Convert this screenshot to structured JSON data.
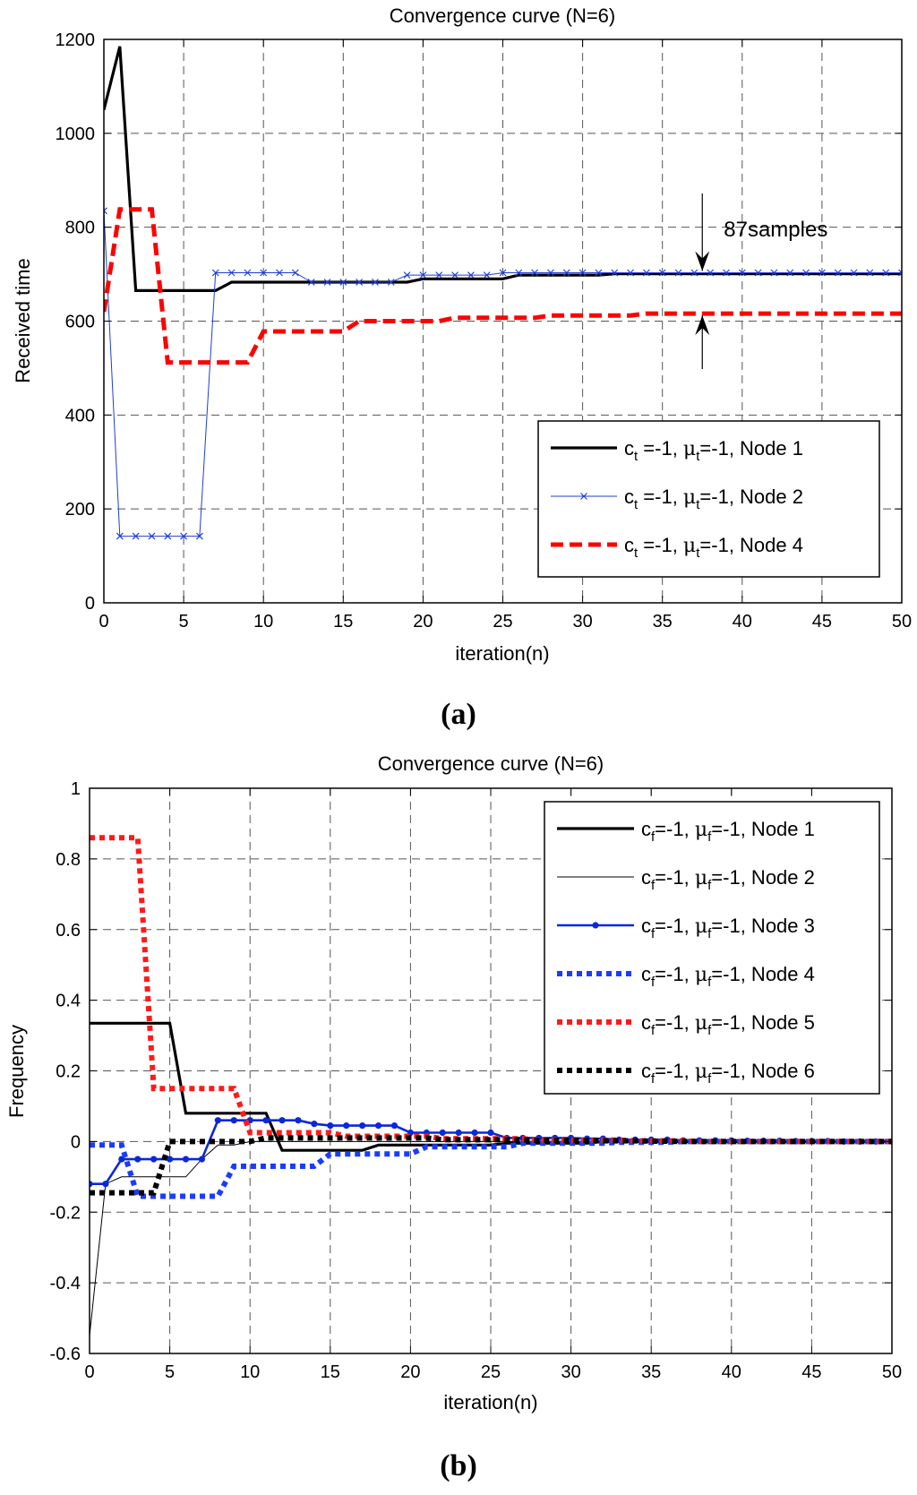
{
  "chart_data": [
    {
      "panel_label": "(a)",
      "type": "line",
      "title": "Convergence curve (N=6)",
      "xlabel": "iteration(n)",
      "ylabel": "Received time",
      "xlim": [
        0,
        50
      ],
      "ylim": [
        0,
        1200
      ],
      "xticks": [
        0,
        5,
        10,
        15,
        20,
        25,
        30,
        35,
        40,
        45,
        50
      ],
      "yticks": [
        0,
        200,
        400,
        600,
        800,
        1000,
        1200
      ],
      "grid": true,
      "legend_position": "bottom-right",
      "annotation": {
        "text": "87samples",
        "x": 37.5,
        "y_top": 703,
        "y_bottom": 616
      },
      "series": [
        {
          "name": "Node 1",
          "legend": {
            "c": "c",
            "sub": "t",
            "mid": " =-1, ",
            "mu_sub": "t",
            "tail": "=-1, Node 1"
          },
          "color": "#000000",
          "style": "solid-thick",
          "values": [
            1050,
            1185,
            665,
            665,
            665,
            665,
            665,
            665,
            683,
            683,
            683,
            683,
            683,
            683,
            683,
            683,
            683,
            683,
            683,
            683,
            690,
            690,
            690,
            690,
            690,
            690,
            698,
            698,
            698,
            698,
            698,
            698,
            701,
            701,
            701,
            701,
            701,
            701,
            701,
            701,
            701,
            701,
            701,
            701,
            701,
            701,
            701,
            701,
            701,
            701,
            701
          ]
        },
        {
          "name": "Node 2",
          "legend": {
            "c": "c",
            "sub": "t",
            "mid": " =-1, ",
            "mu_sub": "t",
            "tail": "=-1, Node 2"
          },
          "color": "#1f3fd0",
          "style": "thin-x",
          "values": [
            835,
            142,
            142,
            142,
            142,
            142,
            142,
            703,
            703,
            703,
            703,
            703,
            703,
            683,
            683,
            683,
            683,
            683,
            683,
            698,
            698,
            698,
            698,
            698,
            698,
            703,
            703,
            703,
            703,
            703,
            703,
            703,
            703,
            703,
            703,
            703,
            703,
            703,
            703,
            703,
            703,
            703,
            703,
            703,
            703,
            703,
            703,
            703,
            703,
            703,
            703
          ]
        },
        {
          "name": "Node 4",
          "legend": {
            "c": "c",
            "sub": "t",
            "mid": " =-1, ",
            "mu_sub": "t",
            "tail": "=-1, Node 4"
          },
          "color": "#ff0000",
          "style": "dashed-thick",
          "values": [
            620,
            838,
            838,
            838,
            512,
            512,
            512,
            512,
            512,
            512,
            578,
            578,
            578,
            578,
            578,
            578,
            600,
            600,
            600,
            600,
            600,
            600,
            607,
            607,
            607,
            607,
            607,
            607,
            612,
            612,
            612,
            612,
            612,
            612,
            616,
            616,
            616,
            616,
            616,
            616,
            616,
            616,
            616,
            616,
            616,
            616,
            616,
            616,
            616,
            616,
            616
          ]
        }
      ]
    },
    {
      "panel_label": "(b)",
      "type": "line",
      "title": "Convergence curve (N=6)",
      "xlabel": "iteration(n)",
      "ylabel": "Frequency",
      "xlim": [
        0,
        50
      ],
      "ylim": [
        -0.6,
        1
      ],
      "xticks": [
        0,
        5,
        10,
        15,
        20,
        25,
        30,
        35,
        40,
        45,
        50
      ],
      "yticks": [
        -0.6,
        -0.4,
        -0.2,
        0,
        0.2,
        0.4,
        0.6,
        0.8,
        1
      ],
      "yticklabels": [
        "-0.6",
        "-0.4",
        "-0.2",
        "0",
        "0.2",
        "0.4",
        "0.6",
        "0.8",
        "1"
      ],
      "grid": true,
      "legend_position": "top-right",
      "series": [
        {
          "name": "Node 1",
          "legend": {
            "c": "c",
            "sub": "f",
            "mid": "=-1, ",
            "mu_sub": "f",
            "tail": "=-1, Node 1"
          },
          "color": "#000000",
          "style": "solid-thick",
          "values": [
            0.335,
            0.335,
            0.335,
            0.335,
            0.335,
            0.335,
            0.08,
            0.08,
            0.08,
            0.08,
            0.08,
            0.08,
            -0.025,
            -0.025,
            -0.025,
            -0.025,
            -0.025,
            -0.025,
            -0.01,
            -0.01,
            -0.01,
            -0.01,
            -0.01,
            -0.01,
            -0.01,
            -0.01,
            -0.005,
            -0.005,
            -0.005,
            -0.005,
            -0.005,
            -0.005,
            0,
            0,
            0,
            0,
            0,
            0,
            0,
            0,
            0,
            0,
            0,
            0,
            0,
            0,
            0,
            0,
            0,
            0,
            0
          ]
        },
        {
          "name": "Node 2",
          "legend": {
            "c": "c",
            "sub": "f",
            "mid": "=-1, ",
            "mu_sub": "f",
            "tail": "=-1, Node 2"
          },
          "color": "#000000",
          "style": "solid-thin",
          "values": [
            -0.55,
            -0.12,
            -0.1,
            -0.1,
            -0.1,
            -0.1,
            -0.1,
            -0.05,
            -0.01,
            -0.01,
            0,
            0,
            0,
            0,
            0,
            0,
            0,
            0,
            0,
            0,
            0,
            0,
            0,
            0,
            0,
            0,
            0,
            0,
            0,
            0,
            0,
            0,
            0,
            0,
            0,
            0,
            0,
            0,
            0,
            0,
            0,
            0,
            0,
            0,
            0,
            0,
            0,
            0,
            0,
            0,
            0
          ]
        },
        {
          "name": "Node 3",
          "legend": {
            "c": "c",
            "sub": "f",
            "mid": "=-1, ",
            "mu_sub": "f",
            "tail": "=-1, Node 3"
          },
          "color": "#0a28d8",
          "style": "solid-dot",
          "values": [
            -0.12,
            -0.12,
            -0.05,
            -0.05,
            -0.05,
            -0.05,
            -0.05,
            -0.05,
            0.06,
            0.06,
            0.06,
            0.06,
            0.06,
            0.06,
            0.05,
            0.045,
            0.045,
            0.045,
            0.045,
            0.045,
            0.025,
            0.025,
            0.025,
            0.025,
            0.025,
            0.025,
            0.01,
            0.01,
            0.01,
            0.01,
            0.01,
            0.008,
            0.008,
            0.005,
            0.005,
            0.005,
            0.005,
            0.003,
            0.003,
            0.003,
            0.003,
            0.002,
            0.002,
            0.002,
            0.001,
            0.001,
            0.001,
            0,
            0,
            0,
            0
          ]
        },
        {
          "name": "Node 4",
          "legend": {
            "c": "c",
            "sub": "f",
            "mid": "=-1, ",
            "mu_sub": "f",
            "tail": "=-1, Node 4"
          },
          "color": "#1a3cff",
          "style": "dotted-thick",
          "values": [
            -0.01,
            -0.01,
            -0.01,
            -0.155,
            -0.155,
            -0.155,
            -0.155,
            -0.155,
            -0.155,
            -0.07,
            -0.07,
            -0.07,
            -0.07,
            -0.07,
            -0.07,
            -0.035,
            -0.035,
            -0.035,
            -0.035,
            -0.035,
            -0.035,
            -0.015,
            -0.015,
            -0.015,
            -0.015,
            -0.015,
            -0.015,
            -0.005,
            -0.005,
            -0.005,
            -0.005,
            -0.005,
            -0.005,
            -0.002,
            -0.002,
            -0.002,
            -0.002,
            0,
            0,
            0,
            0,
            0,
            0,
            0,
            0,
            0,
            0,
            0,
            0,
            0,
            0
          ]
        },
        {
          "name": "Node 5",
          "legend": {
            "c": "c",
            "sub": "f",
            "mid": "=-1, ",
            "mu_sub": "f",
            "tail": "=-1, Node 5"
          },
          "color": "#ff1a1a",
          "style": "dotted-thick",
          "values": [
            0.86,
            0.86,
            0.86,
            0.86,
            0.15,
            0.15,
            0.15,
            0.15,
            0.15,
            0.15,
            0.025,
            0.025,
            0.025,
            0.025,
            0.025,
            0.025,
            0.015,
            0.015,
            0.015,
            0.015,
            0.015,
            0.015,
            0.008,
            0.008,
            0.008,
            0.008,
            0.008,
            0.008,
            0.004,
            0.004,
            0.004,
            0.004,
            0.004,
            0.004,
            0.002,
            0.002,
            0.002,
            0.002,
            0,
            0,
            0,
            0,
            0,
            0,
            0,
            0,
            0,
            0,
            0,
            0,
            0
          ]
        },
        {
          "name": "Node 6",
          "legend": {
            "c": "c",
            "sub": "f",
            "mid": "=-1, ",
            "mu_sub": "f",
            "tail": "=-1, Node 6"
          },
          "color": "#000000",
          "style": "dotted-thick",
          "values": [
            -0.145,
            -0.145,
            -0.145,
            -0.145,
            -0.145,
            0,
            0,
            0,
            0,
            0,
            0,
            0.01,
            0.01,
            0.01,
            0.01,
            0.01,
            0.01,
            0.01,
            0.01,
            0.01,
            0.01,
            0.01,
            0.005,
            0.005,
            0.005,
            0.005,
            0.005,
            0.005,
            0.003,
            0.003,
            0.003,
            0.003,
            0.002,
            0.002,
            0.002,
            0.001,
            0.001,
            0,
            0,
            0,
            0,
            0,
            0,
            0,
            0,
            0,
            0,
            0,
            0,
            0,
            0
          ]
        }
      ]
    }
  ]
}
